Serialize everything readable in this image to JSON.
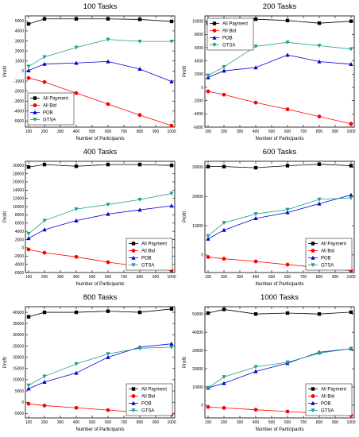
{
  "chart_data": [
    {
      "type": "line",
      "title": "100 Tasks",
      "xlabel": "Number of Participants",
      "ylabel": "Profit",
      "x": [
        100,
        200,
        400,
        600,
        800,
        1000
      ],
      "xlim": [
        80,
        1020
      ],
      "ylim": [
        -5600,
        5500
      ],
      "yticks": [
        -5000,
        -4000,
        -3000,
        -2000,
        -1000,
        0,
        1000,
        2000,
        3000,
        4000,
        5000
      ],
      "xticks": [
        100,
        200,
        300,
        400,
        500,
        600,
        700,
        800,
        900,
        1000
      ],
      "legend": "bottom-left",
      "series": [
        {
          "name": "All Payment",
          "marker": "square",
          "color": "#000000",
          "values": [
            4700,
            5200,
            5200,
            5200,
            5150,
            4950
          ]
        },
        {
          "name": "All Bid",
          "marker": "circle",
          "color": "#ff0000",
          "values": [
            -700,
            -1100,
            -2200,
            -3300,
            -4400,
            -5450
          ]
        },
        {
          "name": "POB",
          "marker": "triangle-up",
          "color": "#0000cc",
          "values": [
            50,
            700,
            800,
            950,
            200,
            -1050
          ]
        },
        {
          "name": "GTSA",
          "marker": "triangle-down",
          "color": "#1e9e8e",
          "values": [
            450,
            1400,
            2350,
            3150,
            2950,
            2950
          ]
        }
      ]
    },
    {
      "type": "line",
      "title": "200 Tasks",
      "xlabel": "Number of Participants",
      "ylabel": "Profit",
      "x": [
        100,
        200,
        400,
        600,
        800,
        1000
      ],
      "xlim": [
        80,
        1020
      ],
      "ylim": [
        -6000,
        10800
      ],
      "yticks": [
        -6000,
        -4000,
        -2000,
        0,
        2000,
        4000,
        6000,
        8000,
        10000
      ],
      "xticks": [
        100,
        200,
        300,
        400,
        500,
        600,
        700,
        800,
        900,
        1000
      ],
      "legend": "top-left",
      "series": [
        {
          "name": "All Payment",
          "marker": "square",
          "color": "#000000",
          "values": [
            9700,
            10200,
            10300,
            10100,
            9700,
            10000
          ]
        },
        {
          "name": "All Bid",
          "marker": "circle",
          "color": "#ff0000",
          "values": [
            -600,
            -1100,
            -2300,
            -3300,
            -4400,
            -5500
          ]
        },
        {
          "name": "POB",
          "marker": "triangle-up",
          "color": "#0000cc",
          "values": [
            1500,
            2500,
            3000,
            4900,
            3900,
            3500
          ]
        },
        {
          "name": "GTSA",
          "marker": "triangle-down",
          "color": "#1e9e8e",
          "values": [
            1800,
            3100,
            6200,
            6800,
            6300,
            5800
          ]
        }
      ]
    },
    {
      "type": "line",
      "title": "400 Tasks",
      "xlabel": "Number of Participants",
      "ylabel": "Profit",
      "x": [
        100,
        200,
        400,
        600,
        800,
        1000
      ],
      "xlim": [
        80,
        1020
      ],
      "ylim": [
        -6000,
        21000
      ],
      "yticks": [
        -6000,
        -4000,
        -2000,
        0,
        2000,
        4000,
        6000,
        8000,
        10000,
        12000,
        14000,
        16000,
        18000,
        20000
      ],
      "xticks": [
        100,
        200,
        300,
        400,
        500,
        600,
        700,
        800,
        900,
        1000
      ],
      "legend": "bottom-right",
      "series": [
        {
          "name": "All Payment",
          "marker": "square",
          "color": "#000000",
          "values": [
            19600,
            20200,
            19800,
            20200,
            20200,
            20000
          ]
        },
        {
          "name": "All Bid",
          "marker": "circle",
          "color": "#ff0000",
          "values": [
            -400,
            -1200,
            -2200,
            -3500,
            -4500,
            -5500
          ]
        },
        {
          "name": "POB",
          "marker": "triangle-up",
          "color": "#0000cc",
          "values": [
            2300,
            4400,
            6600,
            8200,
            9200,
            10200
          ]
        },
        {
          "name": "GTSA",
          "marker": "triangle-down",
          "color": "#1e9e8e",
          "values": [
            3400,
            6600,
            9400,
            10500,
            11700,
            13200
          ]
        }
      ]
    },
    {
      "type": "line",
      "title": "600 Tasks",
      "xlabel": "Number of Participants",
      "ylabel": "Profit",
      "x": [
        100,
        200,
        400,
        600,
        800,
        1000
      ],
      "xlim": [
        80,
        1020
      ],
      "ylim": [
        -6000,
        32000
      ],
      "yticks": [
        0,
        10000,
        20000,
        30000
      ],
      "xticks": [
        100,
        200,
        300,
        400,
        500,
        600,
        700,
        800,
        900,
        1000
      ],
      "legend": "bottom-right",
      "series": [
        {
          "name": "All Payment",
          "marker": "square",
          "color": "#000000",
          "values": [
            30200,
            30200,
            29800,
            30500,
            31000,
            30500
          ]
        },
        {
          "name": "All Bid",
          "marker": "circle",
          "color": "#ff0000",
          "values": [
            -700,
            -1300,
            -2200,
            -3300,
            -4300,
            -5300
          ]
        },
        {
          "name": "POB",
          "marker": "triangle-up",
          "color": "#0000cc",
          "values": [
            5500,
            8500,
            12500,
            14500,
            17500,
            20500
          ]
        },
        {
          "name": "GTSA",
          "marker": "triangle-down",
          "color": "#1e9e8e",
          "values": [
            6500,
            11000,
            14000,
            15500,
            19000,
            19500
          ]
        }
      ]
    },
    {
      "type": "line",
      "title": "800 Tasks",
      "xlabel": "Number of Participants",
      "ylabel": "Profit",
      "x": [
        100,
        200,
        400,
        600,
        800,
        1000
      ],
      "xlim": [
        80,
        1020
      ],
      "ylim": [
        -7000,
        42500
      ],
      "yticks": [
        -5000,
        0,
        5000,
        10000,
        15000,
        20000,
        25000,
        30000,
        35000,
        40000
      ],
      "xticks": [
        100,
        200,
        300,
        400,
        500,
        600,
        700,
        800,
        900,
        1000
      ],
      "legend": "bottom-right",
      "series": [
        {
          "name": "All Payment",
          "marker": "square",
          "color": "#000000",
          "values": [
            38000,
            40000,
            40000,
            40500,
            40000,
            41500
          ]
        },
        {
          "name": "All Bid",
          "marker": "circle",
          "color": "#ff0000",
          "values": [
            -700,
            -1500,
            -2500,
            -3500,
            -4500,
            -5500
          ]
        },
        {
          "name": "POB",
          "marker": "triangle-up",
          "color": "#0000cc",
          "values": [
            6000,
            9000,
            13000,
            20000,
            24500,
            26000
          ]
        },
        {
          "name": "GTSA",
          "marker": "triangle-down",
          "color": "#1e9e8e",
          "values": [
            7500,
            11500,
            17000,
            21500,
            24000,
            24500
          ]
        }
      ]
    },
    {
      "type": "line",
      "title": "1000 Tasks",
      "xlabel": "Number of Participants",
      "ylabel": "Profit",
      "x": [
        100,
        200,
        400,
        600,
        800,
        1000
      ],
      "xlim": [
        80,
        1020
      ],
      "ylim": [
        -7000,
        54000
      ],
      "yticks": [
        0,
        10000,
        20000,
        30000,
        40000,
        50000
      ],
      "xticks": [
        100,
        200,
        300,
        400,
        500,
        600,
        700,
        800,
        900,
        1000
      ],
      "legend": "bottom-right",
      "series": [
        {
          "name": "All Payment",
          "marker": "square",
          "color": "#000000",
          "values": [
            50500,
            52500,
            50000,
            50500,
            50000,
            51000
          ]
        },
        {
          "name": "All Bid",
          "marker": "circle",
          "color": "#ff0000",
          "values": [
            -1000,
            -1500,
            -2500,
            -3500,
            -4500,
            -5500
          ]
        },
        {
          "name": "POB",
          "marker": "triangle-up",
          "color": "#0000cc",
          "values": [
            9500,
            12000,
            18500,
            23000,
            29000,
            31000
          ]
        },
        {
          "name": "GTSA",
          "marker": "triangle-down",
          "color": "#1e9e8e",
          "values": [
            9500,
            15500,
            21000,
            23500,
            28500,
            31000
          ]
        }
      ]
    }
  ]
}
